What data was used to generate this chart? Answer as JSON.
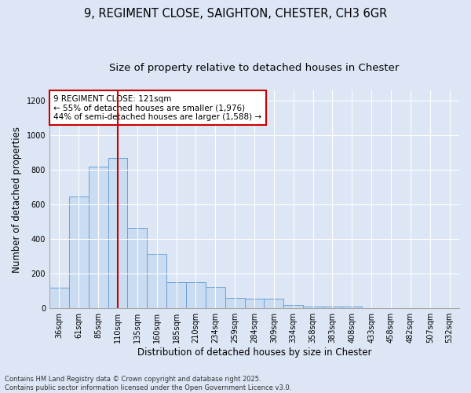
{
  "title_line1": "9, REGIMENT CLOSE, SAIGHTON, CHESTER, CH3 6GR",
  "title_line2": "Size of property relative to detached houses in Chester",
  "xlabel": "Distribution of detached houses by size in Chester",
  "ylabel": "Number of detached properties",
  "categories": [
    "36sqm",
    "61sqm",
    "85sqm",
    "110sqm",
    "135sqm",
    "160sqm",
    "185sqm",
    "210sqm",
    "234sqm",
    "259sqm",
    "284sqm",
    "309sqm",
    "334sqm",
    "358sqm",
    "383sqm",
    "408sqm",
    "433sqm",
    "458sqm",
    "482sqm",
    "507sqm",
    "532sqm"
  ],
  "values": [
    120,
    645,
    820,
    870,
    465,
    315,
    150,
    150,
    125,
    60,
    55,
    55,
    20,
    10,
    10,
    10,
    0,
    0,
    0,
    0,
    0
  ],
  "bar_color": "#c9dcf2",
  "bar_edge_color": "#6b9fd4",
  "vline_x_index": 3,
  "vline_color": "#cc0000",
  "annotation_text": "9 REGIMENT CLOSE: 121sqm\n← 55% of detached houses are smaller (1,976)\n44% of semi-detached houses are larger (1,588) →",
  "annotation_box_facecolor": "#ffffff",
  "annotation_box_edgecolor": "#cc0000",
  "ylim": [
    0,
    1260
  ],
  "yticks": [
    0,
    200,
    400,
    600,
    800,
    1000,
    1200
  ],
  "background_color": "#dce6f5",
  "plot_bg_color": "#dce6f5",
  "footnote": "Contains HM Land Registry data © Crown copyright and database right 2025.\nContains public sector information licensed under the Open Government Licence v3.0.",
  "title_fontsize": 10.5,
  "subtitle_fontsize": 9.5,
  "axis_label_fontsize": 8.5,
  "tick_fontsize": 7,
  "annotation_fontsize": 7.5,
  "footnote_fontsize": 6
}
